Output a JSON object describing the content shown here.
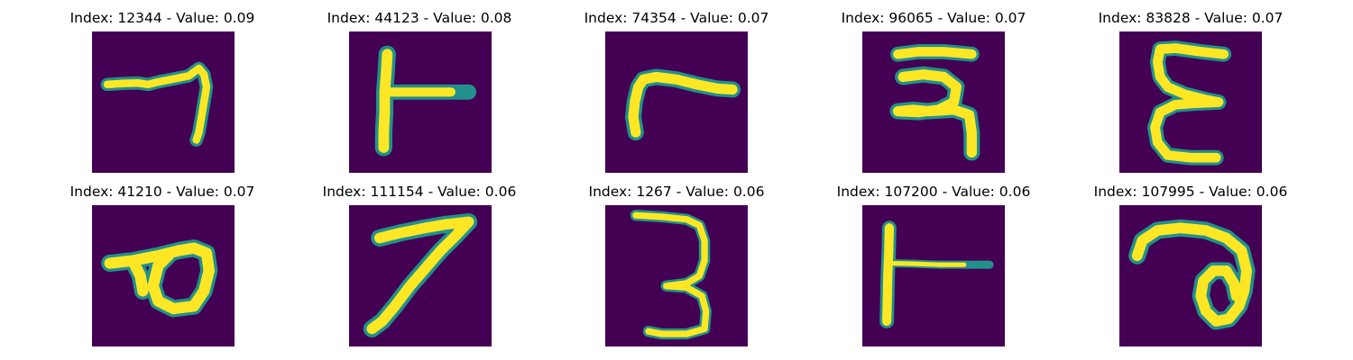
{
  "colors": {
    "background": "#440154",
    "stroke_mid": "#21918c",
    "stroke_light": "#5ec962",
    "stroke_core": "#fde725"
  },
  "panels": [
    {
      "title": "Index: 12344 - Value: 0.09",
      "glyph": "seven-like stroke"
    },
    {
      "title": "Index: 44123 - Value: 0.08",
      "glyph": "T-rotated stroke"
    },
    {
      "title": "Index: 74354 - Value: 0.07",
      "glyph": "r-like stroke"
    },
    {
      "title": "Index: 96065 - Value: 0.07",
      "glyph": "two-loop character"
    },
    {
      "title": "Index: 83828 - Value: 0.07",
      "glyph": "epsilon-like stroke"
    },
    {
      "title": "Index: 41210 - Value: 0.07",
      "glyph": "p-like loop"
    },
    {
      "title": "Index: 111154 - Value: 0.06",
      "glyph": "seven stroke"
    },
    {
      "title": "Index: 1267 - Value: 0.06",
      "glyph": "three-like stroke"
    },
    {
      "title": "Index: 107200 - Value: 0.06",
      "glyph": "T-rotated thin stroke"
    },
    {
      "title": "Index: 107995 - Value: 0.06",
      "glyph": "a-like loop"
    }
  ]
}
